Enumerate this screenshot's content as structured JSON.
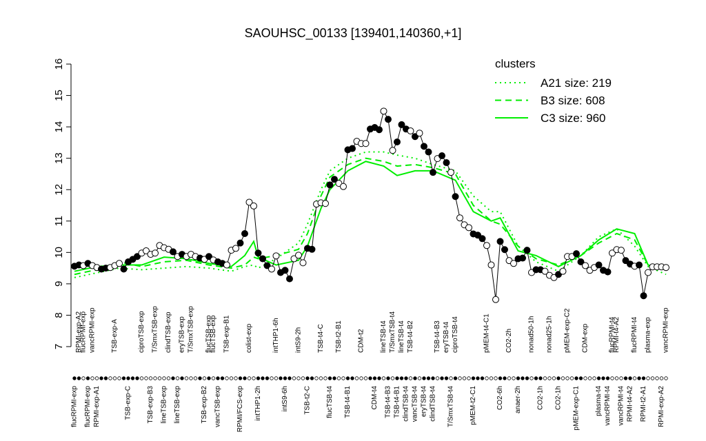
{
  "chart_data": {
    "type": "line",
    "title": "SAOUHSC_00133 [139401,140360,+1]",
    "ylim": [
      7,
      16
    ],
    "yticks": [
      7,
      8,
      9,
      10,
      11,
      12,
      13,
      14,
      15,
      16
    ],
    "point_color": "#000000",
    "values": [
      9.56,
      9.6,
      9.58,
      9.65,
      9.58,
      9.52,
      9.47,
      9.5,
      9.52,
      9.58,
      9.65,
      9.47,
      9.7,
      9.78,
      9.87,
      9.98,
      10.05,
      9.94,
      9.98,
      10.22,
      10.15,
      10.1,
      10.02,
      9.87,
      9.94,
      9.87,
      9.94,
      9.87,
      9.82,
      9.78,
      9.87,
      9.76,
      9.7,
      9.65,
      9.6,
      10.07,
      10.13,
      10.3,
      10.6,
      11.6,
      11.48,
      9.98,
      9.8,
      9.58,
      9.47,
      9.89,
      9.36,
      9.43,
      9.16,
      9.8,
      9.91,
      9.67,
      10.13,
      10.1,
      11.54,
      11.58,
      11.56,
      12.15,
      12.33,
      12.2,
      12.1,
      13.27,
      13.31,
      13.54,
      13.47,
      13.47,
      13.93,
      13.98,
      13.91,
      14.5,
      14.24,
      13.25,
      13.52,
      14.07,
      13.93,
      13.87,
      13.69,
      13.8,
      13.38,
      13.2,
      12.55,
      12.99,
      13.08,
      12.86,
      12.55,
      11.78,
      11.1,
      10.88,
      10.79,
      10.59,
      10.55,
      10.44,
      10.22,
      9.6,
      8.5,
      10.35,
      10.09,
      9.74,
      9.65,
      9.8,
      9.82,
      10.07,
      9.36,
      9.45,
      9.45,
      9.4,
      9.27,
      9.2,
      9.3,
      9.4,
      9.87,
      9.87,
      9.96,
      9.7,
      9.58,
      9.43,
      9.52,
      9.6,
      9.43,
      9.38,
      9.98,
      10.09,
      10.07,
      9.74,
      9.63,
      9.56,
      9.6,
      8.62,
      9.36,
      9.54,
      9.54,
      9.54,
      9.52
    ],
    "filled": [
      true,
      true,
      false,
      true,
      false,
      false,
      true,
      true,
      false,
      false,
      false,
      true,
      true,
      true,
      true,
      false,
      false,
      false,
      false,
      false,
      false,
      false,
      true,
      false,
      true,
      false,
      false,
      false,
      true,
      false,
      true,
      false,
      true,
      true,
      false,
      false,
      false,
      true,
      true,
      false,
      false,
      true,
      true,
      true,
      false,
      false,
      true,
      true,
      true,
      false,
      false,
      false,
      true,
      true,
      false,
      false,
      false,
      true,
      true,
      false,
      false,
      true,
      true,
      false,
      false,
      false,
      true,
      true,
      true,
      false,
      true,
      false,
      true,
      true,
      true,
      false,
      true,
      false,
      true,
      true,
      true,
      false,
      true,
      true,
      false,
      true,
      false,
      false,
      false,
      true,
      true,
      true,
      false,
      false,
      false,
      true,
      true,
      false,
      false,
      true,
      true,
      true,
      false,
      true,
      true,
      false,
      false,
      false,
      true,
      false,
      false,
      false,
      true,
      true,
      false,
      false,
      false,
      true,
      true,
      true,
      false,
      false,
      false,
      true,
      true,
      false,
      true,
      true,
      false,
      false,
      false,
      false,
      false
    ],
    "top_labels": [
      null,
      "RPMI-exp-A2",
      "flucRPMI-exp",
      null,
      "vancRPMI-exp",
      null,
      null,
      null,
      null,
      "TSB-exp-A",
      null,
      null,
      null,
      null,
      null,
      "ciproTSB-exp",
      null,
      null,
      "T/SmxTSB-exp",
      null,
      null,
      "clindTSB-exp",
      null,
      null,
      "eryTSB-exp",
      null,
      "T/SmxTSB-exp",
      null,
      null,
      null,
      "flucTSB-exp",
      "flucTSB-exp",
      null,
      null,
      "TSB-exp-B1",
      null,
      null,
      null,
      null,
      "colist-exp",
      null,
      null,
      null,
      null,
      null,
      "intTHP1-6h",
      null,
      null,
      null,
      null,
      "intS9-2h",
      null,
      null,
      null,
      null,
      "TSB-t4-C",
      null,
      null,
      null,
      "TSB-t2-B1",
      null,
      null,
      null,
      null,
      "CDM-t2",
      null,
      null,
      null,
      null,
      "lineTSB-t4",
      null,
      "T/SmxTSB-t4",
      null,
      "lineTSB-t4",
      null,
      "TSB-t4-B2",
      null,
      null,
      null,
      null,
      null,
      "TSB-t4-B3",
      null,
      "eryTSB-t4",
      null,
      "ciproTSB-t4",
      null,
      null,
      null,
      null,
      null,
      null,
      "pMEM-t4-C1",
      null,
      null,
      null,
      null,
      "CO2-2h",
      null,
      null,
      null,
      null,
      "nonad50-1h",
      null,
      null,
      null,
      "nonad25-1h",
      null,
      null,
      null,
      "pMEM-exp-C2",
      null,
      null,
      null,
      "CDM-exp",
      null,
      null,
      null,
      null,
      null,
      "flucRPMI-t4",
      "RPMI-t4-A2",
      null,
      null,
      null,
      "flucRPMI-t4",
      null,
      null,
      "plasma-exp",
      null,
      null,
      null,
      "vancRPMI-exp"
    ],
    "bottom_labels": [
      "flucRPMI-exp",
      null,
      null,
      "flucRPMI-exp",
      null,
      "RPMI-exp-A1",
      null,
      null,
      null,
      null,
      null,
      null,
      "TSB-exp-C",
      null,
      null,
      null,
      null,
      "TSB-exp-B3",
      null,
      null,
      "lineTSB-exp",
      null,
      null,
      "lineTSB-exp",
      null,
      null,
      null,
      null,
      null,
      "TSB-exp-B2",
      null,
      null,
      "vancTSB-exp",
      null,
      null,
      null,
      null,
      "RPMI/FCS-exp",
      null,
      null,
      null,
      "intTHP1-2h",
      null,
      null,
      null,
      null,
      null,
      "intS9-6h",
      null,
      null,
      null,
      null,
      "TSB-t2-C",
      null,
      null,
      null,
      null,
      "flucTSB-t4",
      null,
      null,
      null,
      "TSB-t4-B1",
      null,
      null,
      null,
      null,
      null,
      "CDM-t4",
      null,
      null,
      "TSB-t4-B3",
      null,
      "TSB-t4-B1",
      null,
      "clindTSB-t4",
      null,
      "vancTSB-t4",
      null,
      "eryTSB-t4",
      null,
      "clindTSB-t4",
      null,
      null,
      null,
      "T/SmxTSB-t4",
      null,
      null,
      null,
      null,
      "pMEM-t2-C1",
      null,
      null,
      null,
      null,
      null,
      "CO2-6h",
      null,
      null,
      null,
      "anaer-2h",
      null,
      null,
      null,
      null,
      "CO2-1h",
      null,
      null,
      null,
      "CO2-1h",
      null,
      null,
      null,
      "pMEM-exp-C1",
      null,
      null,
      null,
      null,
      "plasma-t4",
      null,
      "vancRPMI-t4",
      null,
      null,
      "vancRPMI-t4",
      null,
      "RPMI-t4-A2",
      null,
      null,
      "RPMI-t2-A1",
      null,
      null,
      null,
      "RPMI-exp-A2",
      null
    ],
    "legend_title": "clusters",
    "legend_position": "top-right",
    "series": [
      {
        "name": "A21 size: 219",
        "color": "#00ee00",
        "dash": "dotted",
        "x": [
          0,
          5,
          10,
          15,
          20,
          25,
          30,
          35,
          38,
          40,
          41,
          45,
          50,
          52,
          55,
          57,
          61,
          65,
          69,
          72,
          76,
          80,
          85,
          89,
          93,
          95,
          99,
          103,
          108,
          113,
          117,
          121,
          125,
          128,
          132
        ],
        "values": [
          9.2,
          9.35,
          9.5,
          9.45,
          9.5,
          9.55,
          9.5,
          9.4,
          9.55,
          9.6,
          9.5,
          9.8,
          10.3,
          10.9,
          12.0,
          12.6,
          13.0,
          13.2,
          13.2,
          13.1,
          13.0,
          12.8,
          12.6,
          11.8,
          11.3,
          11.3,
          10.2,
          9.7,
          9.4,
          9.9,
          10.5,
          10.75,
          10.2,
          9.55,
          9.3
        ]
      },
      {
        "name": "B3 size: 608",
        "color": "#00ee00",
        "dash": "dashed",
        "x": [
          0,
          5,
          10,
          15,
          20,
          25,
          30,
          35,
          38,
          40,
          41,
          45,
          50,
          52,
          55,
          57,
          61,
          65,
          69,
          72,
          76,
          80,
          85,
          89,
          93,
          95,
          99,
          103,
          108,
          113,
          117,
          121,
          125,
          128,
          132
        ],
        "values": [
          9.3,
          9.45,
          9.7,
          9.55,
          9.7,
          9.75,
          9.6,
          9.5,
          9.6,
          9.85,
          9.8,
          9.9,
          10.1,
          10.6,
          11.8,
          12.4,
          12.8,
          13.0,
          12.9,
          12.75,
          12.8,
          12.7,
          12.5,
          11.5,
          11.0,
          10.9,
          10.2,
          9.8,
          9.6,
          9.9,
          10.3,
          10.6,
          10.4,
          9.6,
          9.45
        ]
      },
      {
        "name": "C3 size: 960",
        "color": "#00ee00",
        "dash": "solid",
        "x": [
          0,
          5,
          10,
          15,
          20,
          25,
          30,
          35,
          38,
          40,
          41,
          45,
          50,
          52,
          55,
          57,
          61,
          65,
          69,
          72,
          76,
          80,
          85,
          89,
          93,
          95,
          99,
          103,
          108,
          113,
          117,
          121,
          125,
          128,
          132
        ],
        "values": [
          9.4,
          9.55,
          9.6,
          9.6,
          9.85,
          9.8,
          9.65,
          9.55,
          9.9,
          10.35,
          9.85,
          9.6,
          9.75,
          10.2,
          11.4,
          12.0,
          12.6,
          12.9,
          12.75,
          12.45,
          12.6,
          12.6,
          12.3,
          11.3,
          11.0,
          11.1,
          10.05,
          9.9,
          9.55,
          9.9,
          10.4,
          10.75,
          10.6,
          9.6,
          9.5
        ]
      }
    ]
  }
}
